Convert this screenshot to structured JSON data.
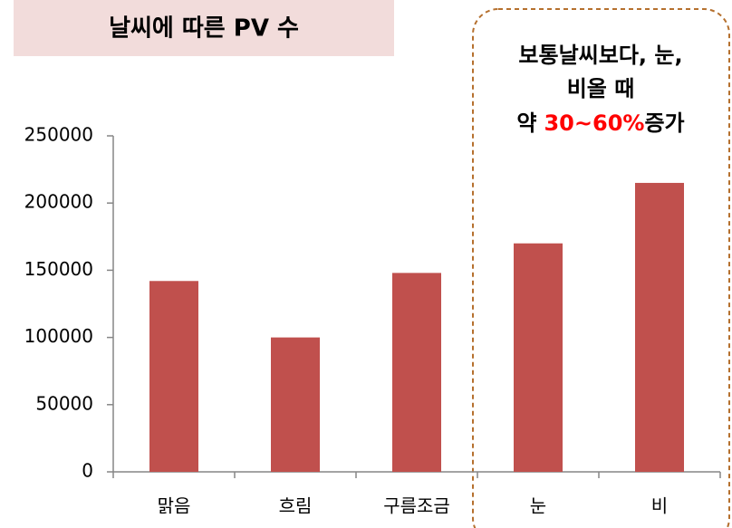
{
  "chart_data": {
    "type": "bar",
    "title": "날씨에 따른 PV 수",
    "categories": [
      "맑음",
      "흐림",
      "구름조금",
      "눈",
      "비"
    ],
    "values": [
      142000,
      100000,
      148000,
      170000,
      215000
    ],
    "color": "#c0504d",
    "ylim": [
      0,
      250000
    ],
    "yticks": [
      0,
      50000,
      100000,
      150000,
      200000,
      250000
    ],
    "grid": false,
    "annotation": {
      "lines": [
        "보통날씨보다, 눈,",
        "비올 때"
      ],
      "before": "약",
      "highlight": "30~60%",
      "after": "증가",
      "highlight_color": "#ff0000"
    }
  }
}
